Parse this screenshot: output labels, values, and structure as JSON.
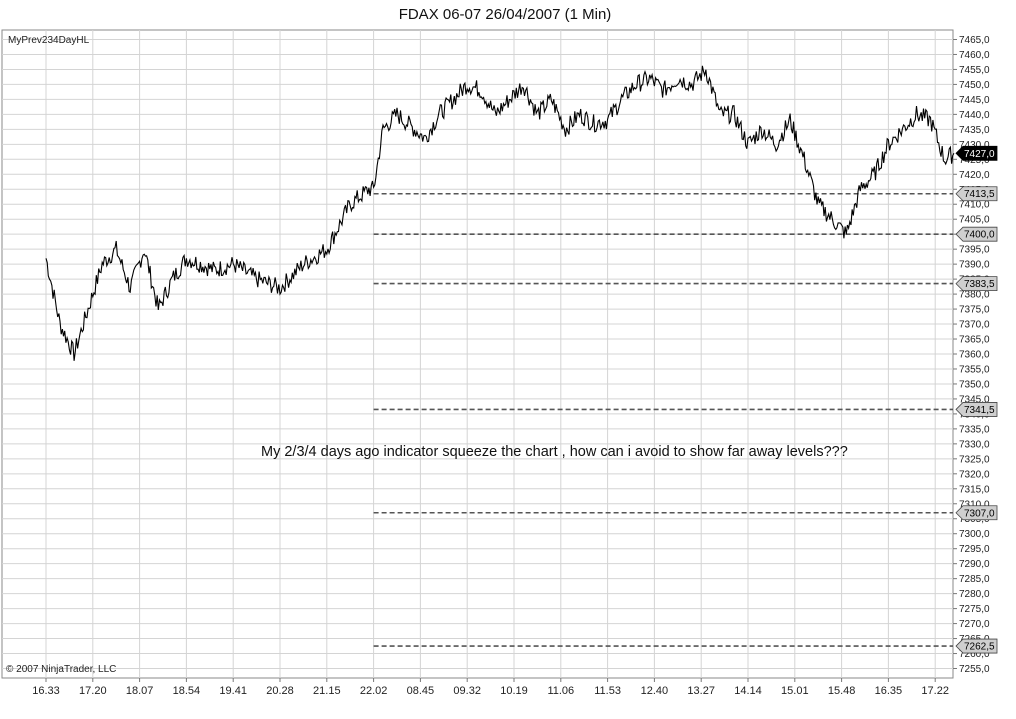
{
  "chart_data": {
    "type": "line",
    "title": "FDAX 06-07  26/04/2007  (1 Min)",
    "indicator_label": "MyPrev234DayHL",
    "copyright": "© 2007 NinjaTrader, LLC",
    "annotation": "My 2/3/4 days ago indicator squeeze the chart , how can i avoid to show far away levels???",
    "ylim": [
      7252.5,
      7467.5
    ],
    "y_ticks": [
      7255,
      7260,
      7265,
      7270,
      7275,
      7280,
      7285,
      7290,
      7295,
      7300,
      7305,
      7310,
      7315,
      7320,
      7325,
      7330,
      7335,
      7340,
      7345,
      7350,
      7355,
      7360,
      7365,
      7370,
      7375,
      7380,
      7385,
      7390,
      7395,
      7400,
      7405,
      7410,
      7415,
      7420,
      7425,
      7430,
      7435,
      7440,
      7445,
      7450,
      7455,
      7460,
      7465
    ],
    "y_tick_labels": [
      "7255,0",
      "7260,0",
      "7265,0",
      "7270,0",
      "7275,0",
      "7280,0",
      "7285,0",
      "7290,0",
      "7295,0",
      "7300,0",
      "7305,0",
      "7310,0",
      "7315,0",
      "7320,0",
      "7325,0",
      "7330,0",
      "7335,0",
      "7340,0",
      "7345,0",
      "7350,0",
      "7355,0",
      "7360,0",
      "7365,0",
      "7370,0",
      "7375,0",
      "7380,0",
      "7385,0",
      "7390,0",
      "7395,0",
      "7400,0",
      "7405,0",
      "7410,0",
      "7415,0",
      "7420,0",
      "7425,0",
      "7430,0",
      "7435,0",
      "7440,0",
      "7445,0",
      "7450,0",
      "7455,0",
      "7460,0",
      "7465,0"
    ],
    "x_tick_labels": [
      "16.33",
      "17.20",
      "18.07",
      "18.54",
      "19.41",
      "20.28",
      "21.15",
      "22.02",
      "08.45",
      "09.32",
      "10.19",
      "11.06",
      "11.53",
      "12.40",
      "13.27",
      "14.14",
      "15.01",
      "15.48",
      "16.35",
      "17.22"
    ],
    "grid": true,
    "series": [
      {
        "x_index": [
          0,
          0.3,
          0.6,
          0.9,
          1.2,
          1.5,
          1.8,
          2.1,
          2.4,
          2.7,
          3.0,
          3.3,
          3.6,
          4.0,
          4.5,
          5.0,
          5.5,
          6.0,
          6.5,
          6.9,
          7.0,
          7.2,
          7.5,
          7.8,
          8.1,
          8.4,
          8.7,
          9.0,
          9.3,
          9.6,
          9.9,
          10.2,
          10.5,
          10.8,
          11.1,
          11.4,
          11.7,
          12.0,
          12.3,
          12.6,
          12.9,
          13.2,
          13.5,
          13.8,
          14.1,
          14.4,
          14.7,
          15.0,
          15.3,
          15.6,
          15.9,
          16.2,
          16.5,
          16.8,
          17.1,
          17.4,
          17.7,
          18.0,
          18.3,
          18.6,
          18.9,
          19.2,
          19.4
        ],
        "y": [
          7392,
          7370,
          7360,
          7375,
          7390,
          7395,
          7382,
          7395,
          7375,
          7385,
          7392,
          7390,
          7388,
          7390,
          7385,
          7382,
          7390,
          7395,
          7410,
          7415,
          7415,
          7435,
          7440,
          7436,
          7432,
          7440,
          7445,
          7450,
          7448,
          7440,
          7445,
          7450,
          7440,
          7445,
          7435,
          7440,
          7437,
          7438,
          7445,
          7450,
          7452,
          7448,
          7452,
          7450,
          7455,
          7440,
          7440,
          7430,
          7435,
          7430,
          7438,
          7425,
          7410,
          7405,
          7400,
          7415,
          7420,
          7430,
          7435,
          7440,
          7438,
          7425,
          7427
        ]
      }
    ],
    "levels": [
      {
        "value": 7413.5,
        "label": "7413,5"
      },
      {
        "value": 7400.0,
        "label": "7400,0"
      },
      {
        "value": 7383.5,
        "label": "7383,5"
      },
      {
        "value": 7341.5,
        "label": "7341,5"
      },
      {
        "value": 7307.0,
        "label": "7307,0"
      },
      {
        "value": 7262.5,
        "label": "7262,5"
      }
    ],
    "last_price": {
      "value": 7427.0,
      "label": "7427,0"
    },
    "colors": {
      "price": "#000000",
      "level": "#555555",
      "grid": "#d4d4d4",
      "tag_fill": "#cfcfcf",
      "last_tag_fill": "#000000"
    }
  }
}
